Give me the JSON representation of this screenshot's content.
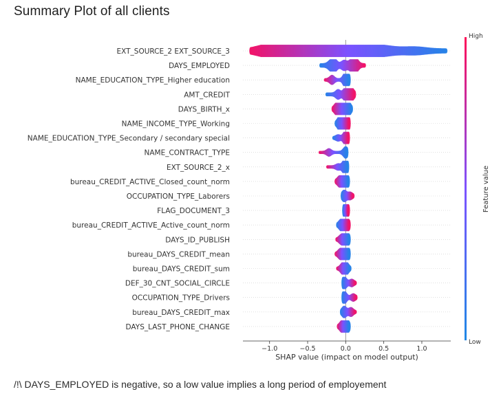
{
  "page": {
    "title": "Summary Plot of all clients",
    "note": "/!\\ DAYS_EMPLOYED is negative, so a low value implies a long period of employement"
  },
  "chart_data": {
    "type": "scatter",
    "subtype": "shap-beeswarm",
    "xlabel": "SHAP value (impact on model output)",
    "xlim": [
      -1.35,
      1.38
    ],
    "xticks": [
      -1.0,
      -0.5,
      0.0,
      0.5,
      1.0
    ],
    "xtick_labels": [
      "−1.0",
      "−0.5",
      "0.0",
      "0.5",
      "1.0"
    ],
    "vertical_line_at": 0,
    "colorbar": {
      "label": "Feature value",
      "high_label": "High",
      "low_label": "Low",
      "low_color": "#1e88e5",
      "high_color": "#ff0d57"
    },
    "features": [
      {
        "name": "EXT_SOURCE_2 EXT_SOURCE_3",
        "min": -1.25,
        "max": 1.32,
        "high_side": "negative",
        "width": 3.6,
        "bulges": [
          [
            -1.0,
            7
          ],
          [
            -0.6,
            8
          ],
          [
            -0.45,
            9
          ],
          [
            -0.3,
            7
          ],
          [
            -0.05,
            6
          ],
          [
            0.25,
            5
          ],
          [
            0.5,
            4
          ],
          [
            0.9,
            3
          ]
        ]
      },
      {
        "name": "DAYS_EMPLOYED",
        "min": -0.33,
        "max": 0.25,
        "high_side": "positive",
        "width": 3.2,
        "bulges": [
          [
            -0.2,
            4
          ],
          [
            -0.15,
            7
          ],
          [
            -0.02,
            5
          ],
          [
            0.08,
            6
          ],
          [
            0.13,
            8
          ]
        ]
      },
      {
        "name": "NAME_EDUCATION_TYPE_Higher education",
        "min": -0.27,
        "max": 0.05,
        "high_side": "negative",
        "width": 2.4,
        "bulges": [
          [
            -0.18,
            5
          ],
          [
            0.0,
            8
          ],
          [
            0.02,
            7
          ]
        ]
      },
      {
        "name": "AMT_CREDIT",
        "min": -0.25,
        "max": 0.12,
        "high_side": "positive",
        "width": 2.8,
        "bulges": [
          [
            -0.1,
            5
          ],
          [
            0.0,
            8
          ],
          [
            0.05,
            9
          ],
          [
            0.09,
            4
          ]
        ]
      },
      {
        "name": "DAYS_BIRTH_x",
        "min": -0.17,
        "max": 0.08,
        "high_side": "negative",
        "width": 2.6,
        "bulges": [
          [
            -0.12,
            7
          ],
          [
            -0.06,
            6
          ],
          [
            0.01,
            9
          ],
          [
            0.04,
            6
          ]
        ]
      },
      {
        "name": "NAME_INCOME_TYPE_Working",
        "min": -0.13,
        "max": 0.05,
        "high_side": "positive",
        "width": 2.6,
        "bulges": [
          [
            -0.08,
            7
          ],
          [
            -0.05,
            6
          ],
          [
            0.02,
            8
          ],
          [
            0.03,
            6
          ]
        ]
      },
      {
        "name": "NAME_EDUCATION_TYPE_Secondary / secondary special",
        "min": -0.16,
        "max": 0.04,
        "high_side": "positive",
        "width": 2.4,
        "bulges": [
          [
            -0.1,
            3
          ],
          [
            0.0,
            6
          ],
          [
            0.02,
            8
          ]
        ]
      },
      {
        "name": "NAME_CONTRACT_TYPE",
        "min": -0.34,
        "max": 0.02,
        "high_side": "negative",
        "width": 2.2,
        "bulges": [
          [
            -0.22,
            4
          ],
          [
            0.0,
            7
          ]
        ]
      },
      {
        "name": "EXT_SOURCE_2_x",
        "min": -0.24,
        "max": 0.03,
        "high_side": "negative",
        "width": 2.4,
        "bulges": [
          [
            -0.1,
            3
          ],
          [
            -0.01,
            7
          ],
          [
            0.01,
            8
          ]
        ]
      },
      {
        "name": "bureau_CREDIT_ACTIVE_Closed_count_norm",
        "min": -0.13,
        "max": 0.04,
        "high_side": "negative",
        "width": 2.6,
        "bulges": [
          [
            -0.08,
            6
          ],
          [
            -0.02,
            6
          ],
          [
            0.01,
            8
          ]
        ]
      },
      {
        "name": "OCCUPATION_TYPE_Laborers",
        "min": -0.05,
        "max": 0.1,
        "high_side": "positive",
        "width": 2.2,
        "bulges": [
          [
            -0.02,
            7
          ],
          [
            0.06,
            4
          ]
        ]
      },
      {
        "name": "FLAG_DOCUMENT_3",
        "min": -0.03,
        "max": 0.04,
        "high_side": "positive",
        "width": 2.4,
        "bulges": [
          [
            -0.01,
            6
          ],
          [
            0.01,
            8
          ]
        ]
      },
      {
        "name": "bureau_CREDIT_ACTIVE_Active_count_norm",
        "min": -0.11,
        "max": 0.05,
        "high_side": "positive",
        "width": 2.6,
        "bulges": [
          [
            -0.06,
            6
          ],
          [
            -0.01,
            5
          ],
          [
            0.02,
            7
          ]
        ]
      },
      {
        "name": "DAYS_ID_PUBLISH",
        "min": -0.12,
        "max": 0.05,
        "high_side": "negative",
        "width": 2.4,
        "bulges": [
          [
            -0.06,
            5
          ],
          [
            0.0,
            7
          ],
          [
            0.02,
            6
          ]
        ]
      },
      {
        "name": "bureau_DAYS_CREDIT_mean",
        "min": -0.13,
        "max": 0.05,
        "high_side": "negative",
        "width": 2.6,
        "bulges": [
          [
            -0.07,
            6
          ],
          [
            0.0,
            6
          ],
          [
            0.02,
            7
          ]
        ]
      },
      {
        "name": "bureau_DAYS_CREDIT_sum",
        "min": -0.11,
        "max": 0.06,
        "high_side": "negative",
        "width": 2.4,
        "bulges": [
          [
            -0.04,
            6
          ],
          [
            0.01,
            7
          ]
        ]
      },
      {
        "name": "DEF_30_CNT_SOCIAL_CIRCLE",
        "min": -0.04,
        "max": 0.13,
        "high_side": "positive",
        "width": 2.2,
        "bulges": [
          [
            -0.02,
            8
          ],
          [
            0.08,
            4
          ]
        ]
      },
      {
        "name": "OCCUPATION_TYPE_Drivers",
        "min": -0.04,
        "max": 0.14,
        "high_side": "positive",
        "width": 2.2,
        "bulges": [
          [
            -0.02,
            8
          ],
          [
            0.1,
            4
          ]
        ]
      },
      {
        "name": "bureau_DAYS_CREDIT_max",
        "min": -0.06,
        "max": 0.13,
        "high_side": "positive",
        "width": 2.2,
        "bulges": [
          [
            -0.02,
            7
          ],
          [
            0.07,
            5
          ]
        ]
      },
      {
        "name": "DAYS_LAST_PHONE_CHANGE",
        "min": -0.1,
        "max": 0.05,
        "high_side": "negative",
        "width": 2.4,
        "bulges": [
          [
            -0.05,
            6
          ],
          [
            0.0,
            7
          ],
          [
            0.02,
            5
          ]
        ]
      }
    ]
  }
}
